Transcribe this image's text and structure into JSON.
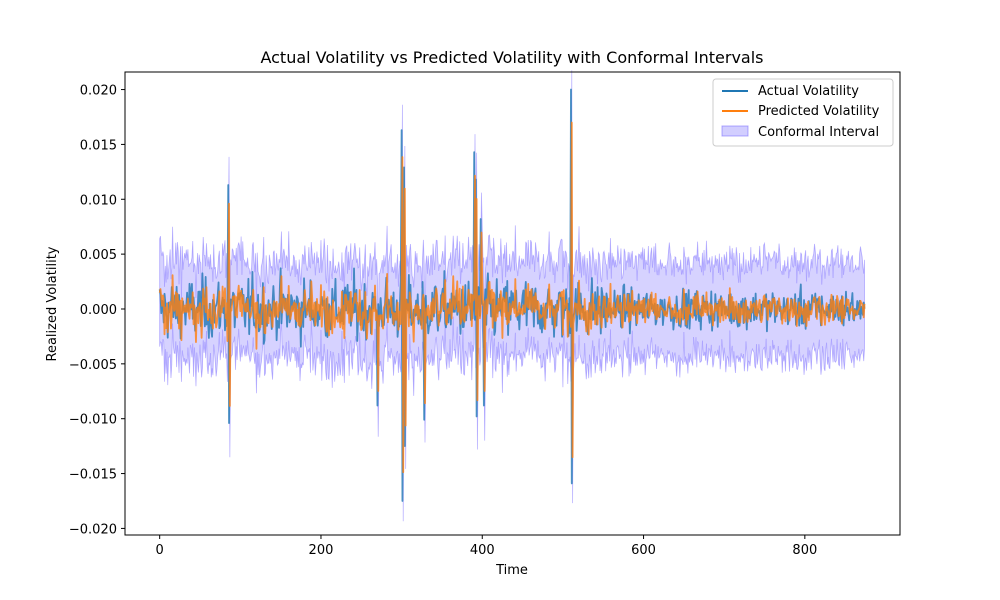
{
  "chart_data": {
    "type": "line",
    "title": "Actual Volatility vs Predicted Volatility with Conformal Intervals",
    "xlabel": "Time",
    "ylabel": "Realized Volatility",
    "xlim": [
      -43,
      918
    ],
    "ylim": [
      -0.0206,
      0.0216
    ],
    "x_ticks": [
      0,
      200,
      400,
      600,
      800
    ],
    "y_ticks": [
      -0.02,
      -0.015,
      -0.01,
      -0.005,
      0.0,
      0.005,
      0.01,
      0.015,
      0.02
    ],
    "x_tick_labels": [
      "0",
      "200",
      "400",
      "600",
      "800"
    ],
    "y_tick_labels": [
      "−0.020",
      "−0.015",
      "−0.010",
      "−0.005",
      "0.000",
      "0.005",
      "0.010",
      "0.015",
      "0.020"
    ],
    "n_points": 875,
    "grid": false,
    "legend_position": "top-right",
    "series": [
      {
        "name": "Actual Volatility",
        "color": "#1f77b4",
        "kind": "line",
        "baseline_std": 0.0019,
        "spikes": [
          {
            "x": 85,
            "y": 0.0113
          },
          {
            "x": 86,
            "y": -0.0104
          },
          {
            "x": 270,
            "y": -0.0088
          },
          {
            "x": 300,
            "y": 0.0163
          },
          {
            "x": 301,
            "y": -0.0175
          },
          {
            "x": 303,
            "y": 0.0129
          },
          {
            "x": 304,
            "y": -0.0125
          },
          {
            "x": 328,
            "y": -0.0101
          },
          {
            "x": 390,
            "y": 0.0143
          },
          {
            "x": 392,
            "y": 0.0118
          },
          {
            "x": 393,
            "y": -0.0098
          },
          {
            "x": 398,
            "y": 0.0082
          },
          {
            "x": 402,
            "y": -0.0088
          },
          {
            "x": 510,
            "y": 0.02
          },
          {
            "x": 511,
            "y": -0.0159
          }
        ]
      },
      {
        "name": "Predicted Volatility",
        "color": "#ff7f0e",
        "kind": "line",
        "baseline_std": 0.0012
      },
      {
        "name": "Conformal Interval",
        "color": "#6a5cff",
        "kind": "band",
        "half_width": 0.0042
      }
    ]
  }
}
